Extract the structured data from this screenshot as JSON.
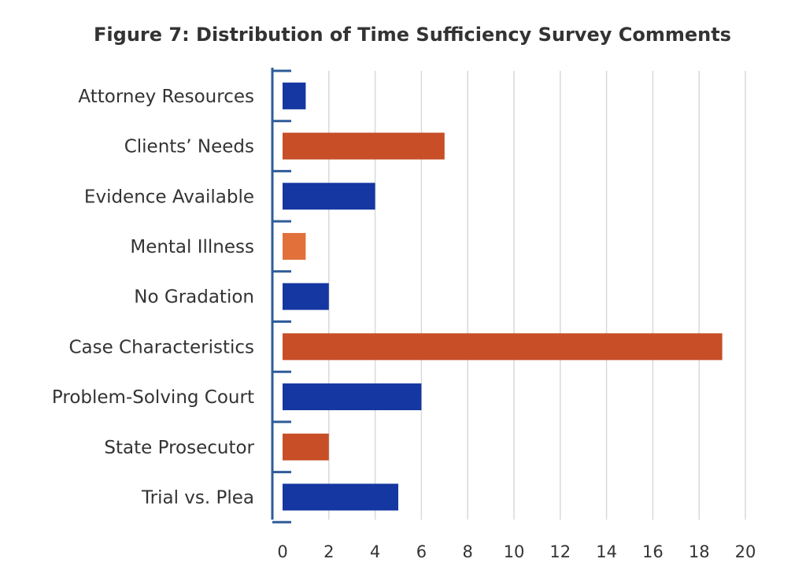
{
  "chart_data": {
    "type": "bar",
    "orientation": "horizontal",
    "title": "Figure 7: Distribution of Time Sufficiency Survey Comments",
    "xlabel": "",
    "ylabel": "",
    "categories": [
      "Attorney Resources",
      "Clients’ Needs",
      "Evidence Available",
      "Mental Illness",
      "No Gradation",
      "Case Characteristics",
      "Problem-Solving Court",
      "State Prosecutor",
      "Trial vs. Plea"
    ],
    "values": [
      1,
      7,
      4,
      1,
      2,
      19,
      6,
      2,
      5
    ],
    "bar_colors": [
      "#1537a1",
      "#c74e27",
      "#1537a1",
      "#e2703b",
      "#1537a1",
      "#c74e27",
      "#1537a1",
      "#c74e27",
      "#1537a1"
    ],
    "xlim": [
      0,
      20
    ],
    "xticks": [
      "0",
      "2",
      "4",
      "6",
      "8",
      "10",
      "12",
      "14",
      "16",
      "18",
      "20"
    ],
    "grid": true,
    "axis_color": "#2e5c9a",
    "grid_color": "#d9d9d9"
  }
}
